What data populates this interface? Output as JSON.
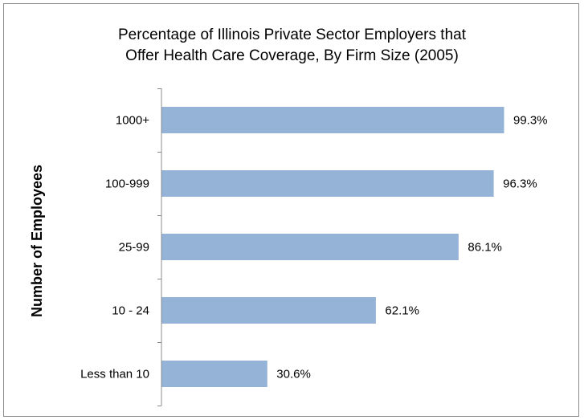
{
  "chart_data": {
    "type": "bar",
    "orientation": "horizontal",
    "title_line1": "Percentage of Illinois Private Sector Employers that",
    "title_line2": "Offer Health Care Coverage, By Firm Size (2005)",
    "xlabel": "",
    "ylabel": "Number  of Employees",
    "categories": [
      "1000+",
      "100-999",
      "25-99",
      "10 - 24",
      "Less than 10"
    ],
    "values": [
      99.3,
      96.3,
      86.1,
      62.1,
      30.6
    ],
    "data_labels": [
      "99.3%",
      "96.3%",
      "86.1%",
      "62.1%",
      "30.6%"
    ],
    "xlim": [
      0,
      100
    ],
    "bar_color": "#95b3d7",
    "grid": false,
    "legend": "none"
  }
}
